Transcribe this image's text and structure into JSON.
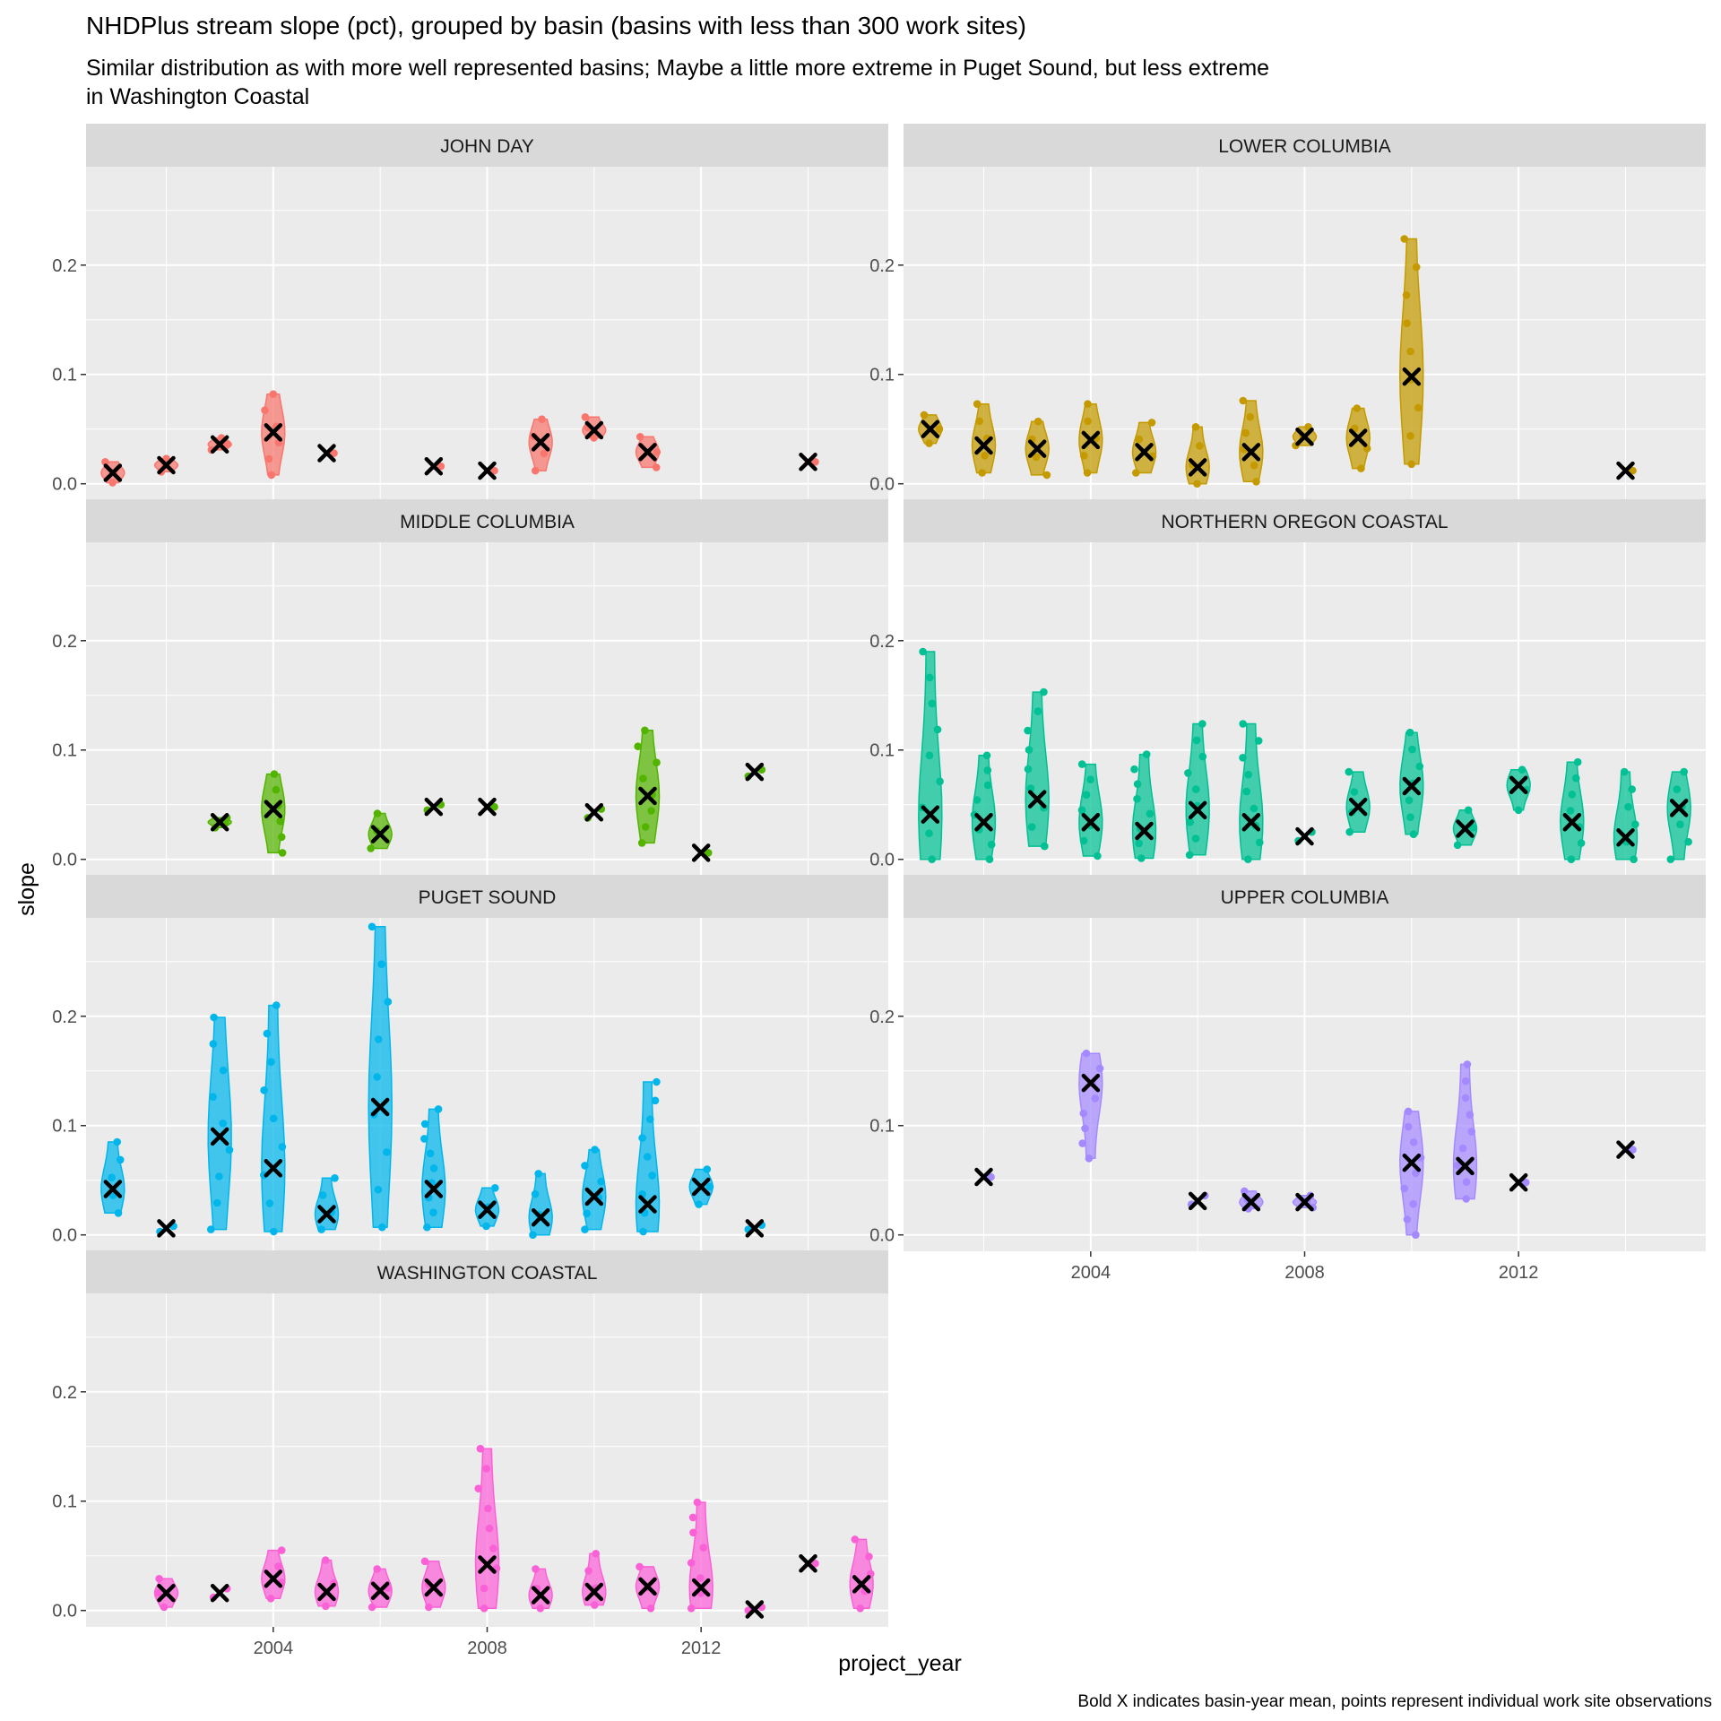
{
  "chart_data": {
    "type": "violin",
    "title": "NHDPlus stream slope (pct), grouped by basin (basins with less than 300 work sites)",
    "subtitle_lines": [
      "Similar distribution as with more well represented basins; Maybe a little more extreme in Puget Sound, but less extreme",
      "in Washington Coastal"
    ],
    "caption": "Bold X indicates basin-year mean, points represent individual work site observations",
    "xlabel": "project_year",
    "ylabel": "slope",
    "x_ticks": [
      "2004",
      "2008",
      "2012"
    ],
    "x_tick_values": [
      2004,
      2008,
      2012
    ],
    "y_ticks": [
      "0.0",
      "0.1",
      "0.2"
    ],
    "y_tick_values": [
      0,
      0.1,
      0.2
    ],
    "xlim": [
      2000.5,
      2015.5
    ],
    "ylim": [
      -0.015,
      0.29
    ],
    "grid": true,
    "legend": "none",
    "mean_marker": "X",
    "panels": [
      {
        "name": "JOHN DAY",
        "color": "#F8766D",
        "groups": [
          {
            "year": 2001,
            "min": 0.001,
            "max": 0.02,
            "mean": 0.01
          },
          {
            "year": 2002,
            "min": 0.011,
            "max": 0.023,
            "mean": 0.017
          },
          {
            "year": 2003,
            "min": 0.031,
            "max": 0.042,
            "mean": 0.036
          },
          {
            "year": 2004,
            "min": 0.008,
            "max": 0.082,
            "mean": 0.047
          },
          {
            "year": 2005,
            "mean": 0.028
          },
          {
            "year": 2007,
            "mean": 0.016
          },
          {
            "year": 2008,
            "mean": 0.012
          },
          {
            "year": 2009,
            "min": 0.012,
            "max": 0.059,
            "mean": 0.038
          },
          {
            "year": 2010,
            "min": 0.042,
            "max": 0.061,
            "mean": 0.049
          },
          {
            "year": 2011,
            "min": 0.015,
            "max": 0.043,
            "mean": 0.029
          },
          {
            "year": 2014,
            "mean": 0.02
          }
        ]
      },
      {
        "name": "LOWER COLUMBIA",
        "color": "#C49A00",
        "groups": [
          {
            "year": 2001,
            "min": 0.037,
            "max": 0.063,
            "mean": 0.05
          },
          {
            "year": 2002,
            "min": 0.01,
            "max": 0.073,
            "mean": 0.035
          },
          {
            "year": 2003,
            "min": 0.008,
            "max": 0.057,
            "mean": 0.032
          },
          {
            "year": 2004,
            "min": 0.01,
            "max": 0.073,
            "mean": 0.04
          },
          {
            "year": 2005,
            "min": 0.01,
            "max": 0.056,
            "mean": 0.029
          },
          {
            "year": 2006,
            "min": 0.0,
            "max": 0.052,
            "mean": 0.015
          },
          {
            "year": 2007,
            "min": 0.002,
            "max": 0.076,
            "mean": 0.029
          },
          {
            "year": 2008,
            "min": 0.035,
            "max": 0.052,
            "mean": 0.043
          },
          {
            "year": 2009,
            "min": 0.014,
            "max": 0.069,
            "mean": 0.042
          },
          {
            "year": 2010,
            "min": 0.018,
            "max": 0.224,
            "mean": 0.098
          },
          {
            "year": 2014,
            "mean": 0.012
          }
        ]
      },
      {
        "name": "MIDDLE COLUMBIA",
        "color": "#53B400",
        "groups": [
          {
            "year": 2003,
            "min": 0.029,
            "max": 0.038,
            "mean": 0.034
          },
          {
            "year": 2004,
            "min": 0.006,
            "max": 0.078,
            "mean": 0.046
          },
          {
            "year": 2006,
            "min": 0.01,
            "max": 0.042,
            "mean": 0.023
          },
          {
            "year": 2007,
            "min": 0.045,
            "max": 0.05,
            "mean": 0.048
          },
          {
            "year": 2008,
            "mean": 0.048
          },
          {
            "year": 2010,
            "min": 0.038,
            "max": 0.046,
            "mean": 0.043
          },
          {
            "year": 2011,
            "min": 0.015,
            "max": 0.118,
            "mean": 0.058
          },
          {
            "year": 2012,
            "mean": 0.006
          },
          {
            "year": 2013,
            "min": 0.076,
            "max": 0.082,
            "mean": 0.08
          }
        ]
      },
      {
        "name": "NORTHERN OREGON COASTAL",
        "color": "#00C094",
        "groups": [
          {
            "year": 2001,
            "min": 0.0,
            "max": 0.19,
            "mean": 0.041
          },
          {
            "year": 2002,
            "min": 0.0,
            "max": 0.095,
            "mean": 0.034
          },
          {
            "year": 2003,
            "min": 0.012,
            "max": 0.153,
            "mean": 0.055
          },
          {
            "year": 2004,
            "min": 0.003,
            "max": 0.087,
            "mean": 0.034
          },
          {
            "year": 2005,
            "min": 0.001,
            "max": 0.096,
            "mean": 0.026
          },
          {
            "year": 2006,
            "min": 0.004,
            "max": 0.124,
            "mean": 0.045
          },
          {
            "year": 2007,
            "min": 0.0,
            "max": 0.124,
            "mean": 0.034
          },
          {
            "year": 2008,
            "min": 0.017,
            "max": 0.025,
            "mean": 0.021
          },
          {
            "year": 2009,
            "min": 0.025,
            "max": 0.08,
            "mean": 0.048
          },
          {
            "year": 2010,
            "min": 0.023,
            "max": 0.116,
            "mean": 0.067
          },
          {
            "year": 2011,
            "min": 0.013,
            "max": 0.045,
            "mean": 0.028
          },
          {
            "year": 2012,
            "min": 0.045,
            "max": 0.082,
            "mean": 0.068
          },
          {
            "year": 2013,
            "min": 0.0,
            "max": 0.089,
            "mean": 0.034
          },
          {
            "year": 2014,
            "min": 0.0,
            "max": 0.08,
            "mean": 0.02
          },
          {
            "year": 2015,
            "min": 0.0,
            "max": 0.08,
            "mean": 0.047
          }
        ]
      },
      {
        "name": "PUGET SOUND",
        "color": "#00B6EB",
        "groups": [
          {
            "year": 2001,
            "min": 0.02,
            "max": 0.085,
            "mean": 0.042
          },
          {
            "year": 2002,
            "min": 0.003,
            "max": 0.008,
            "mean": 0.006
          },
          {
            "year": 2003,
            "min": 0.005,
            "max": 0.199,
            "mean": 0.09
          },
          {
            "year": 2004,
            "min": 0.003,
            "max": 0.21,
            "mean": 0.061
          },
          {
            "year": 2005,
            "min": 0.005,
            "max": 0.052,
            "mean": 0.019
          },
          {
            "year": 2006,
            "min": 0.007,
            "max": 0.282,
            "mean": 0.117
          },
          {
            "year": 2007,
            "min": 0.007,
            "max": 0.115,
            "mean": 0.042
          },
          {
            "year": 2008,
            "min": 0.008,
            "max": 0.043,
            "mean": 0.023
          },
          {
            "year": 2009,
            "min": 0.0,
            "max": 0.056,
            "mean": 0.016
          },
          {
            "year": 2010,
            "min": 0.005,
            "max": 0.078,
            "mean": 0.035
          },
          {
            "year": 2011,
            "min": 0.003,
            "max": 0.14,
            "mean": 0.028
          },
          {
            "year": 2012,
            "min": 0.028,
            "max": 0.06,
            "mean": 0.044
          },
          {
            "year": 2013,
            "min": 0.005,
            "max": 0.009,
            "mean": 0.006
          }
        ]
      },
      {
        "name": "UPPER COLUMBIA",
        "color": "#A58AFF",
        "groups": [
          {
            "year": 2002,
            "mean": 0.053
          },
          {
            "year": 2004,
            "min": 0.07,
            "max": 0.166,
            "mean": 0.139
          },
          {
            "year": 2006,
            "min": 0.028,
            "max": 0.036,
            "mean": 0.031
          },
          {
            "year": 2007,
            "min": 0.024,
            "max": 0.04,
            "mean": 0.03
          },
          {
            "year": 2008,
            "min": 0.025,
            "max": 0.036,
            "mean": 0.03
          },
          {
            "year": 2010,
            "min": 0.0,
            "max": 0.113,
            "mean": 0.066
          },
          {
            "year": 2011,
            "min": 0.033,
            "max": 0.156,
            "mean": 0.063
          },
          {
            "year": 2012,
            "mean": 0.048
          },
          {
            "year": 2014,
            "mean": 0.078
          }
        ]
      },
      {
        "name": "WASHINGTON COASTAL",
        "color": "#FB61D7",
        "groups": [
          {
            "year": 2002,
            "min": 0.003,
            "max": 0.029,
            "mean": 0.016
          },
          {
            "year": 2003,
            "min": 0.012,
            "max": 0.02,
            "mean": 0.016
          },
          {
            "year": 2004,
            "min": 0.011,
            "max": 0.055,
            "mean": 0.029
          },
          {
            "year": 2005,
            "min": 0.004,
            "max": 0.046,
            "mean": 0.017
          },
          {
            "year": 2006,
            "min": 0.003,
            "max": 0.038,
            "mean": 0.018
          },
          {
            "year": 2007,
            "min": 0.003,
            "max": 0.045,
            "mean": 0.021
          },
          {
            "year": 2008,
            "min": 0.002,
            "max": 0.148,
            "mean": 0.042
          },
          {
            "year": 2009,
            "min": 0.002,
            "max": 0.038,
            "mean": 0.014
          },
          {
            "year": 2010,
            "min": 0.005,
            "max": 0.052,
            "mean": 0.017
          },
          {
            "year": 2011,
            "min": 0.002,
            "max": 0.04,
            "mean": 0.022
          },
          {
            "year": 2012,
            "min": 0.002,
            "max": 0.099,
            "mean": 0.021
          },
          {
            "year": 2013,
            "min": 0.0,
            "max": 0.003,
            "mean": 0.001
          },
          {
            "year": 2014,
            "mean": 0.043
          },
          {
            "year": 2015,
            "min": 0.002,
            "max": 0.065,
            "mean": 0.024
          }
        ]
      }
    ]
  }
}
